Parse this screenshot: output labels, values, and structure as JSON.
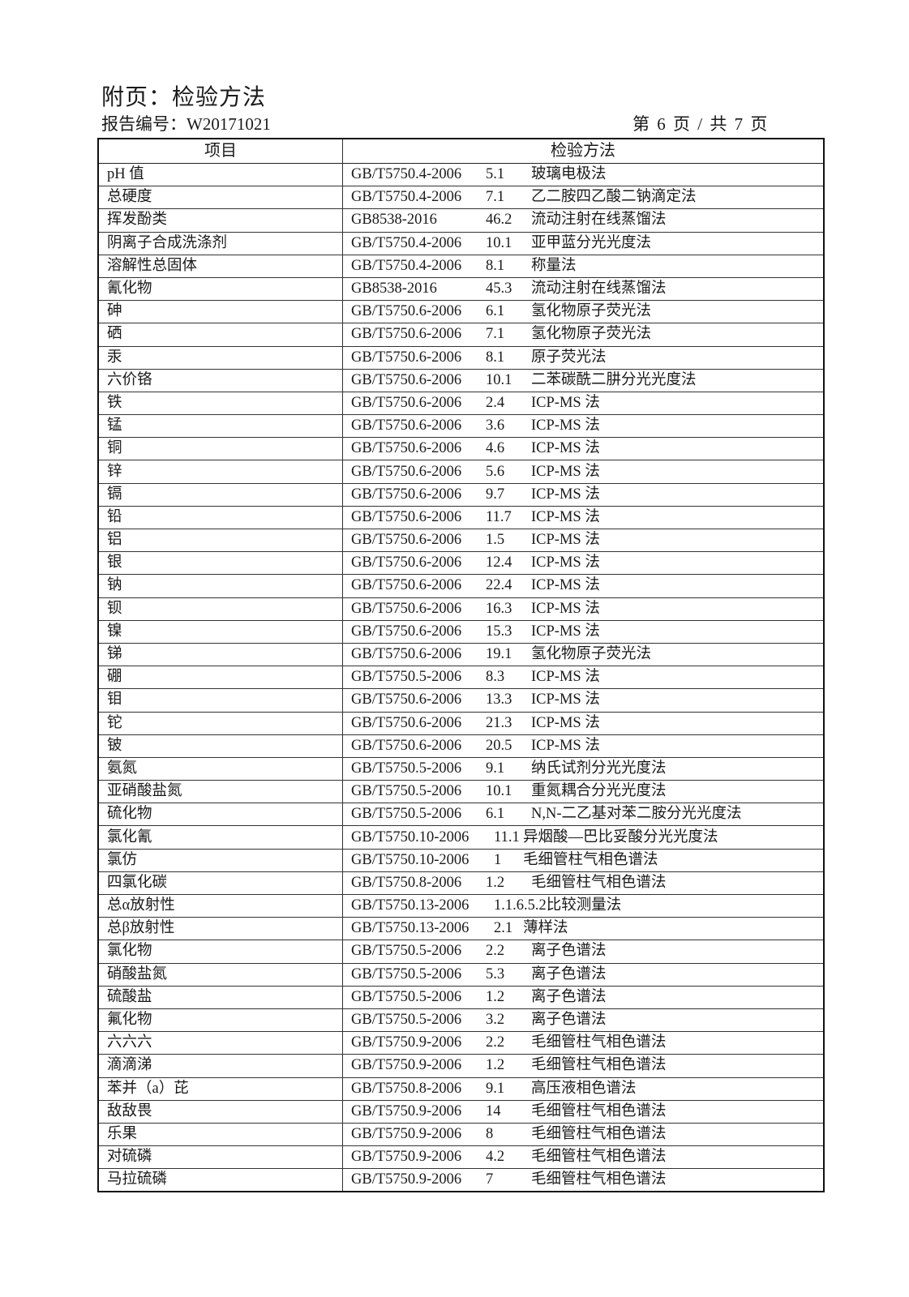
{
  "header": {
    "title": "附页：检验方法",
    "report_no": "报告编号：W20171021",
    "page_no": "第 6 页 / 共 7 页"
  },
  "table": {
    "columns": [
      "项目",
      "检验方法"
    ],
    "rows": [
      {
        "item": "pH 值",
        "code": "GB/T5750.4-2006",
        "clause": "5.1",
        "method": "玻璃电极法"
      },
      {
        "item": "总硬度",
        "code": "GB/T5750.4-2006",
        "clause": "7.1",
        "method": "乙二胺四乙酸二钠滴定法"
      },
      {
        "item": "挥发酚类",
        "code": "GB8538-2016",
        "clause": "46.2",
        "method": "流动注射在线蒸馏法"
      },
      {
        "item": "阴离子合成洗涤剂",
        "code": "GB/T5750.4-2006",
        "clause": "10.1",
        "method": "亚甲蓝分光光度法"
      },
      {
        "item": "溶解性总固体",
        "code": "GB/T5750.4-2006",
        "clause": "8.1",
        "method": "称量法"
      },
      {
        "item": "氰化物",
        "code": "GB8538-2016",
        "clause": "45.3",
        "method": "流动注射在线蒸馏法"
      },
      {
        "item": "砷",
        "code": "GB/T5750.6-2006",
        "clause": "6.1",
        "method": "氢化物原子荧光法"
      },
      {
        "item": "硒",
        "code": "GB/T5750.6-2006",
        "clause": "7.1",
        "method": "氢化物原子荧光法"
      },
      {
        "item": "汞",
        "code": "GB/T5750.6-2006",
        "clause": "8.1",
        "method": "原子荧光法"
      },
      {
        "item": "六价铬",
        "code": "GB/T5750.6-2006",
        "clause": "10.1",
        "method": "二苯碳酰二肼分光光度法"
      },
      {
        "item": "铁",
        "code": "GB/T5750.6-2006",
        "clause": "2.4",
        "method": "ICP-MS 法"
      },
      {
        "item": "锰",
        "code": "GB/T5750.6-2006",
        "clause": "3.6",
        "method": "ICP-MS 法"
      },
      {
        "item": "铜",
        "code": "GB/T5750.6-2006",
        "clause": "4.6",
        "method": "ICP-MS 法"
      },
      {
        "item": "锌",
        "code": "GB/T5750.6-2006",
        "clause": "5.6",
        "method": "ICP-MS 法"
      },
      {
        "item": "镉",
        "code": "GB/T5750.6-2006",
        "clause": "9.7",
        "method": "ICP-MS 法"
      },
      {
        "item": "铅",
        "code": "GB/T5750.6-2006",
        "clause": "11.7",
        "method": "ICP-MS 法"
      },
      {
        "item": "铝",
        "code": "GB/T5750.6-2006",
        "clause": "1.5",
        "method": "ICP-MS 法"
      },
      {
        "item": "银",
        "code": "GB/T5750.6-2006",
        "clause": "12.4",
        "method": "ICP-MS 法"
      },
      {
        "item": "钠",
        "code": "GB/T5750.6-2006",
        "clause": "22.4",
        "method": "ICP-MS 法"
      },
      {
        "item": "钡",
        "code": "GB/T5750.6-2006",
        "clause": "16.3",
        "method": "ICP-MS 法"
      },
      {
        "item": "镍",
        "code": "GB/T5750.6-2006",
        "clause": "15.3",
        "method": "ICP-MS 法"
      },
      {
        "item": "锑",
        "code": "GB/T5750.6-2006",
        "clause": "19.1",
        "method": "氢化物原子荧光法"
      },
      {
        "item": "硼",
        "code": "GB/T5750.5-2006",
        "clause": "8.3",
        "method": "ICP-MS 法"
      },
      {
        "item": "钼",
        "code": "GB/T5750.6-2006",
        "clause": "13.3",
        "method": "ICP-MS 法"
      },
      {
        "item": "铊",
        "code": "GB/T5750.6-2006",
        "clause": "21.3",
        "method": "ICP-MS 法"
      },
      {
        "item": "铍",
        "code": "GB/T5750.6-2006",
        "clause": "20.5",
        "method": "ICP-MS 法"
      },
      {
        "item": "氨氮",
        "code": "GB/T5750.5-2006",
        "clause": "9.1",
        "method": "纳氏试剂分光光度法"
      },
      {
        "item": "亚硝酸盐氮",
        "code": "GB/T5750.5-2006",
        "clause": "10.1",
        "method": "重氮耦合分光光度法"
      },
      {
        "item": "硫化物",
        "code": "GB/T5750.5-2006",
        "clause": "6.1",
        "method": "N,N-二乙基对苯二胺分光光度法"
      },
      {
        "item": "氯化氰",
        "code": "GB/T5750.10-2006",
        "clause": "11.1",
        "method": "异烟酸—巴比妥酸分光光度法"
      },
      {
        "item": "氯仿",
        "code": "GB/T5750.10-2006",
        "clause": "1",
        "method": "毛细管柱气相色谱法"
      },
      {
        "item": "四氯化碳",
        "code": "GB/T5750.8-2006",
        "clause": "1.2",
        "method": "毛细管柱气相色谱法"
      },
      {
        "item": "总α放射性",
        "code": "GB/T5750.13-2006",
        "clause": "1.1.6.5.2",
        "method": "比较测量法"
      },
      {
        "item": "总β放射性",
        "code": "GB/T5750.13-2006",
        "clause": "2.1",
        "method": "薄样法"
      },
      {
        "item": "氯化物",
        "code": "GB/T5750.5-2006",
        "clause": "2.2",
        "method": "离子色谱法"
      },
      {
        "item": "硝酸盐氮",
        "code": "GB/T5750.5-2006",
        "clause": "5.3",
        "method": "离子色谱法"
      },
      {
        "item": "硫酸盐",
        "code": "GB/T5750.5-2006",
        "clause": "1.2",
        "method": "离子色谱法"
      },
      {
        "item": "氟化物",
        "code": "GB/T5750.5-2006",
        "clause": "3.2",
        "method": "离子色谱法"
      },
      {
        "item": "六六六",
        "code": "GB/T5750.9-2006",
        "clause": "2.2",
        "method": "毛细管柱气相色谱法"
      },
      {
        "item": "滴滴涕",
        "code": "GB/T5750.9-2006",
        "clause": "1.2",
        "method": "毛细管柱气相色谱法"
      },
      {
        "item": "苯并（a）芘",
        "code": "GB/T5750.8-2006",
        "clause": "9.1",
        "method": "高压液相色谱法"
      },
      {
        "item": "敌敌畏",
        "code": "GB/T5750.9-2006",
        "clause": "14",
        "method": "毛细管柱气相色谱法"
      },
      {
        "item": "乐果",
        "code": "GB/T5750.9-2006",
        "clause": "8",
        "method": "毛细管柱气相色谱法"
      },
      {
        "item": "对硫磷",
        "code": "GB/T5750.9-2006",
        "clause": "4.2",
        "method": "毛细管柱气相色谱法"
      },
      {
        "item": "马拉硫磷",
        "code": "GB/T5750.9-2006",
        "clause": "7",
        "method": "毛细管柱气相色谱法"
      }
    ]
  }
}
